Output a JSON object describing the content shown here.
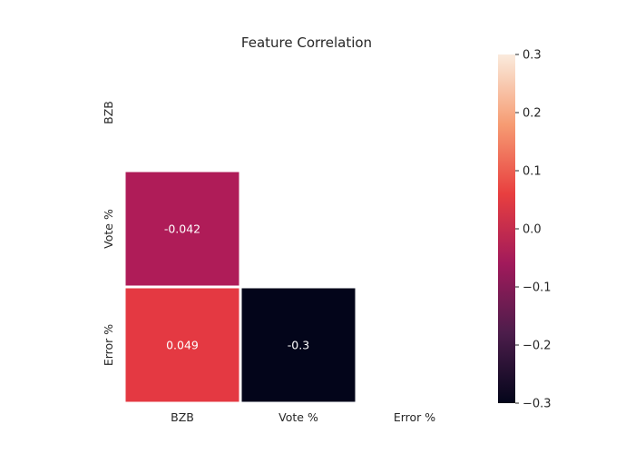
{
  "chart_data": {
    "type": "heatmap",
    "title": "Feature Correlation",
    "x_labels": [
      "BZB",
      "Vote %",
      "Error %"
    ],
    "y_labels": [
      "BZB",
      "Vote %",
      "Error %"
    ],
    "mask": "upper-triangle-and-diagonal",
    "cells": [
      {
        "row": 1,
        "col": 0,
        "value": -0.042,
        "label": "-0.042"
      },
      {
        "row": 2,
        "col": 0,
        "value": 0.049,
        "label": "0.049"
      },
      {
        "row": 2,
        "col": 1,
        "value": -0.3,
        "label": "-0.3"
      }
    ],
    "colorbar": {
      "vmin": -0.3,
      "vmax": 0.3,
      "ticks": [
        0.3,
        0.2,
        0.1,
        0.0,
        -0.1,
        -0.2,
        -0.3
      ],
      "tick_labels": [
        "0.3",
        "0.2",
        "0.1",
        "0.0",
        "−0.1",
        "−0.2",
        "−0.3"
      ],
      "colormap": "rocket"
    }
  }
}
